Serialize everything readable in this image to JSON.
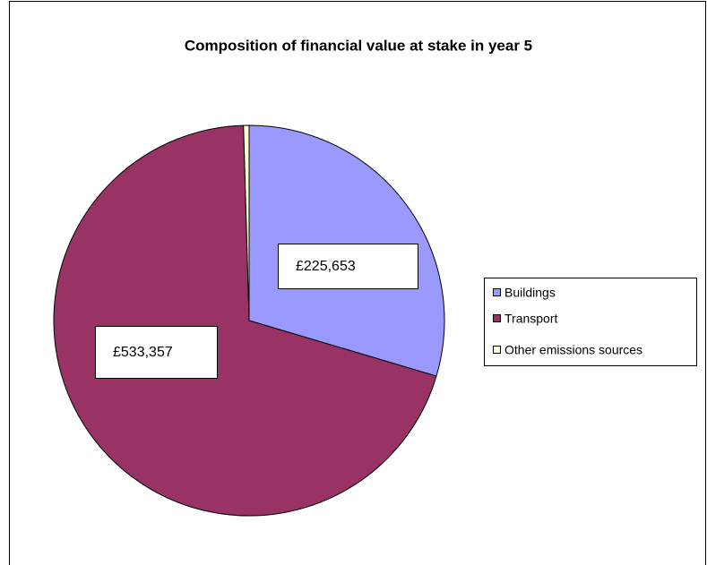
{
  "chart_data": {
    "type": "pie",
    "title": "Composition of financial value at stake in year 5",
    "categories": [
      "Buildings",
      "Transport",
      "Other emissions sources"
    ],
    "values": [
      225653,
      533357,
      3500
    ],
    "value_labels": [
      "£225,653",
      "£533,357",
      null
    ],
    "colors": [
      "#9999ff",
      "#993366",
      "#ffffcc"
    ],
    "legend": "right"
  }
}
